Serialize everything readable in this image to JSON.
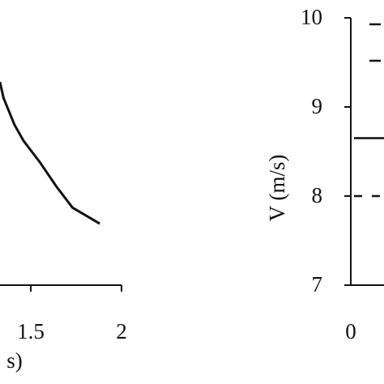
{
  "chart_data": [
    {
      "type": "line",
      "x_label": "s)",
      "x": [
        1.33,
        1.35,
        1.41,
        1.46,
        1.55,
        1.64,
        1.73,
        1.88
      ],
      "series": [
        {
          "color": "#111111",
          "values": [
            0.76,
            0.7,
            0.6,
            0.54,
            0.46,
            0.37,
            0.29,
            0.23
          ]
        }
      ],
      "xticks": [
        1.5,
        2
      ],
      "xlim": [
        1.33,
        2.0
      ],
      "ylim": [
        0,
        1
      ]
    },
    {
      "type": "hline",
      "y_label": "V (m/s)",
      "series": [
        {
          "color": "#111111",
          "style": "solid",
          "values": [
            8.65
          ]
        },
        {
          "color": "#111111",
          "style": "dashed",
          "values": [
            8.0
          ]
        }
      ],
      "yticks": [
        7,
        8,
        9,
        10
      ],
      "ylim": [
        7,
        10
      ],
      "xticks": [
        0
      ]
    }
  ]
}
